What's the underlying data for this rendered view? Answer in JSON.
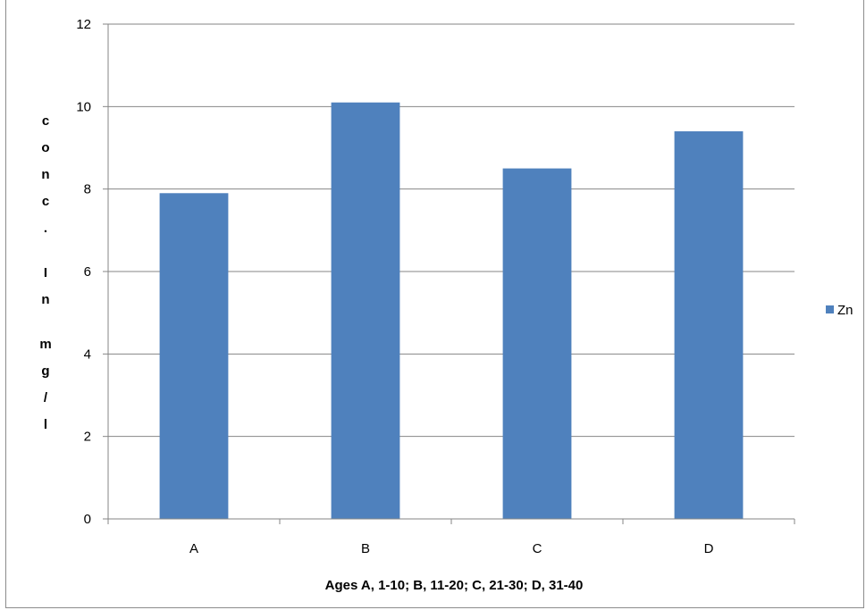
{
  "chart_data": {
    "type": "bar",
    "title": "",
    "xlabel": "Ages A, 1-10; B, 11-20; C, 21-30; D, 31-40",
    "ylabel": "conc. In mg/l",
    "ylabel_chars": [
      "c",
      "o",
      "n",
      "c",
      ".",
      "I",
      "n",
      "m",
      "g",
      "/",
      "l"
    ],
    "categories": [
      "A",
      "B",
      "C",
      "D"
    ],
    "series": [
      {
        "name": "Zn",
        "color": "#4f81bd",
        "values": [
          7.9,
          10.1,
          8.5,
          9.4
        ]
      }
    ],
    "ylim": [
      0,
      12
    ],
    "yticks": [
      0,
      2,
      4,
      6,
      8,
      10,
      12
    ],
    "ytick_labels": [
      "0",
      "2",
      "4",
      "6",
      "8",
      "10",
      "12"
    ],
    "grid": true,
    "legend_position": "right"
  }
}
